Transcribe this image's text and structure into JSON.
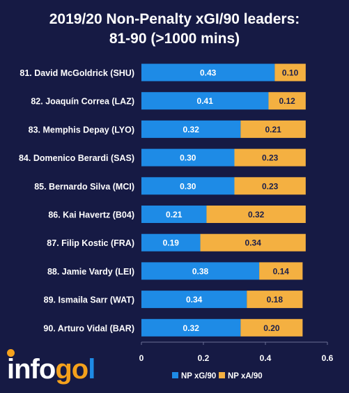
{
  "title_lines": [
    "2019/20 Non-Penalty xGI/90 leaders:",
    "81-90 (>1000 mins)"
  ],
  "logo": {
    "part1": "info",
    "part2": "go",
    "part3": "l"
  },
  "colors": {
    "background": "#161a44",
    "xg": "#1e8be6",
    "xa": "#f4b041"
  },
  "chart_data": {
    "type": "bar",
    "orientation": "horizontal",
    "stacked": true,
    "categories": [
      "81. David McGoldrick (SHU)",
      "82. Joaquín Correa (LAZ)",
      "83. Memphis Depay (LYO)",
      "84. Domenico Berardi (SAS)",
      "85. Bernardo Silva (MCI)",
      "86. Kai Havertz (B04)",
      "87. Filip Kostic (FRA)",
      "88. Jamie Vardy (LEI)",
      "89. Ismaila Sarr (WAT)",
      "90. Arturo Vidal (BAR)"
    ],
    "series": [
      {
        "name": "NP xG/90",
        "values": [
          0.43,
          0.41,
          0.32,
          0.3,
          0.3,
          0.21,
          0.19,
          0.38,
          0.34,
          0.32
        ]
      },
      {
        "name": "NP xA/90",
        "values": [
          0.1,
          0.12,
          0.21,
          0.23,
          0.23,
          0.32,
          0.34,
          0.14,
          0.18,
          0.2
        ]
      }
    ],
    "value_labels": {
      "xg": [
        "0.43",
        "0.41",
        "0.32",
        "0.30",
        "0.30",
        "0.21",
        "0.19",
        "0.38",
        "0.34",
        "0.32"
      ],
      "xa": [
        "0.10",
        "0.12",
        "0.21",
        "0.23",
        "0.23",
        "0.32",
        "0.34",
        "0.14",
        "0.18",
        "0.20"
      ]
    },
    "xlim": [
      0,
      0.6
    ],
    "xticks": [
      0,
      0.2,
      0.4,
      0.6
    ],
    "xtick_labels": [
      "0",
      "0.2",
      "0.4",
      "0.6"
    ],
    "legend": {
      "position": "bottom",
      "items": [
        "NP xG/90",
        "NP xA/90"
      ]
    },
    "grid": false,
    "title": "2019/20 Non-Penalty xGI/90 leaders: 81-90 (>1000 mins)"
  }
}
